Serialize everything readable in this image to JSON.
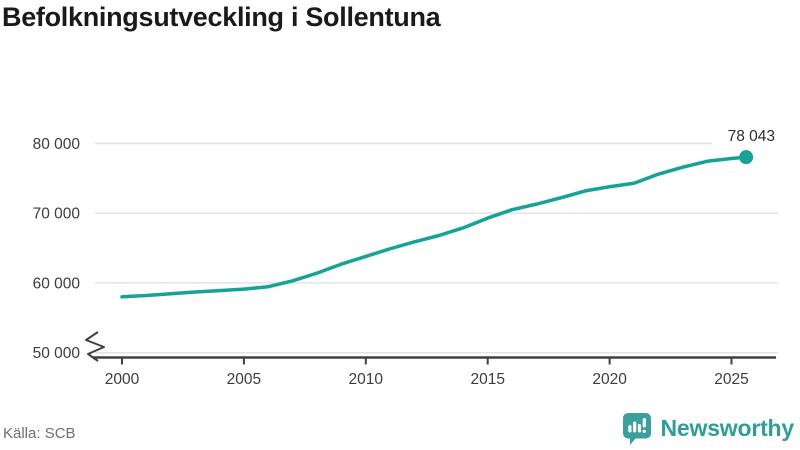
{
  "header": {
    "title": "Befolkningsutveckling i Sollentuna"
  },
  "footer": {
    "source": "Källa: SCB",
    "brand": {
      "wordmark": "Newsworthy",
      "icon": "bar-chart-speech-bubble-icon"
    }
  },
  "colors": {
    "accent": "#14a396",
    "logo_teal": "#2f9e99",
    "title_text": "#1a1a1a",
    "axis_text": "#3d3d3d",
    "muted_text": "#6f6f6f",
    "gridline": "#e3e3e3",
    "axis_line": "#404040",
    "background": "#ffffff"
  },
  "chart_data": {
    "type": "line",
    "title": "Befolkningsutveckling i Sollentuna",
    "x": [
      2000,
      2001,
      2002,
      2003,
      2004,
      2005,
      2006,
      2007,
      2008,
      2009,
      2010,
      2011,
      2012,
      2013,
      2014,
      2015,
      2016,
      2017,
      2018,
      2019,
      2020,
      2021,
      2022,
      2023,
      2024,
      2025
    ],
    "values": [
      58000,
      58200,
      58450,
      58700,
      58900,
      59100,
      59450,
      60300,
      61400,
      62700,
      63800,
      64900,
      65900,
      66800,
      67900,
      69300,
      70500,
      71300,
      72200,
      73200,
      73800,
      74300,
      75600,
      76600,
      77450,
      77850
    ],
    "latest_point": {
      "x": 2025.6,
      "value": 78043,
      "label": "78 043"
    },
    "xticks": [
      {
        "value": 2000,
        "label": "2000"
      },
      {
        "value": 2005,
        "label": "2005"
      },
      {
        "value": 2010,
        "label": "2010"
      },
      {
        "value": 2015,
        "label": "2015"
      },
      {
        "value": 2020,
        "label": "2020"
      },
      {
        "value": 2025,
        "label": "2025"
      }
    ],
    "yticks": [
      {
        "value": 50000,
        "label": "50 000"
      },
      {
        "value": 60000,
        "label": "60 000"
      },
      {
        "value": 70000,
        "label": "70 000"
      },
      {
        "value": 80000,
        "label": "80 000"
      }
    ],
    "ylim": [
      50000,
      80000
    ],
    "xlim": [
      1999,
      2027
    ],
    "grid": "horizontal",
    "legend": "none",
    "y_axis_break": true
  }
}
